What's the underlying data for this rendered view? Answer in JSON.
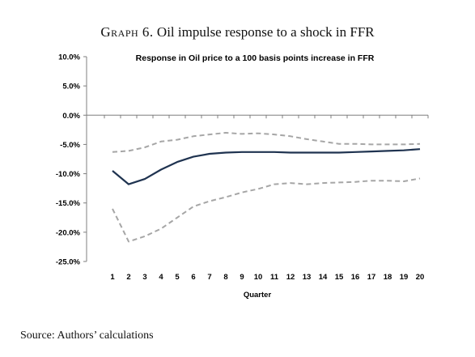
{
  "caption": {
    "prefix": "Graph 6.",
    "text": "Oil impulse response to a shock in FFR"
  },
  "source": "Source: Authors’ calculations",
  "chart_data": {
    "type": "line",
    "title": "Response in Oil price to a  100 basis points increase in FFR",
    "xlabel": "Quarter",
    "ylabel": "",
    "x": [
      1,
      2,
      3,
      4,
      5,
      6,
      7,
      8,
      9,
      10,
      11,
      12,
      13,
      14,
      15,
      16,
      17,
      18,
      19,
      20
    ],
    "x_tick_labels": [
      "1",
      "2",
      "3",
      "4",
      "5",
      "6",
      "7",
      "8",
      "9",
      "10",
      "11",
      "12",
      "13",
      "14",
      "15",
      "16",
      "17",
      "18",
      "19",
      "20"
    ],
    "y_tick_values": [
      10,
      5,
      0,
      -5,
      -10,
      -15,
      -20,
      -25
    ],
    "y_tick_labels": [
      "10.0%",
      "5.0%",
      "0.0%",
      "-5.0%",
      "-10.0%",
      "-15.0%",
      "-20.0%",
      "-25.0%"
    ],
    "ylim": [
      -25,
      10
    ],
    "grid": false,
    "legend": "none",
    "series": [
      {
        "role": "estimate",
        "style": "solid",
        "color": "#1f3350",
        "values": [
          -9.5,
          -11.8,
          -10.9,
          -9.3,
          -8.0,
          -7.1,
          -6.6,
          -6.4,
          -6.3,
          -6.3,
          -6.3,
          -6.4,
          -6.4,
          -6.4,
          -6.4,
          -6.3,
          -6.2,
          -6.1,
          -6.0,
          -5.8
        ]
      },
      {
        "role": "upper-bound",
        "style": "dashed",
        "color": "#a6a6a6",
        "values": [
          -6.3,
          -6.1,
          -5.5,
          -4.5,
          -4.2,
          -3.6,
          -3.3,
          -3.0,
          -3.2,
          -3.1,
          -3.3,
          -3.6,
          -4.1,
          -4.5,
          -4.9,
          -4.9,
          -5.0,
          -5.0,
          -5.0,
          -4.9
        ]
      },
      {
        "role": "lower-bound",
        "style": "dashed",
        "color": "#a6a6a6",
        "values": [
          -16.0,
          -21.6,
          -20.7,
          -19.4,
          -17.5,
          -15.6,
          -14.7,
          -14.0,
          -13.2,
          -12.6,
          -11.8,
          -11.6,
          -11.8,
          -11.6,
          -11.5,
          -11.4,
          -11.2,
          -11.2,
          -11.3,
          -10.8
        ]
      }
    ]
  }
}
